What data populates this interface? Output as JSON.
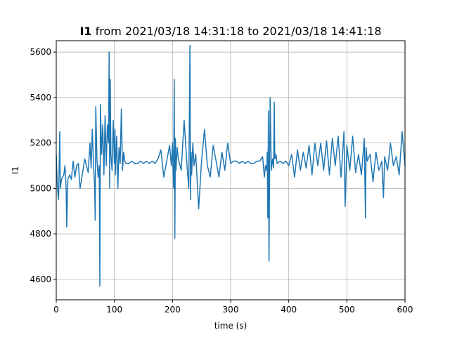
{
  "chart_data": {
    "type": "line",
    "title": {
      "bold": "I1",
      "rest": " from 2021/03/18 14:31:18 to 2021/03/18 14:41:18"
    },
    "xlabel": "time (s)",
    "ylabel": "I1",
    "xlim": [
      0,
      600
    ],
    "ylim": [
      4510,
      5650
    ],
    "xticks": [
      0,
      100,
      200,
      300,
      400,
      500,
      600
    ],
    "yticks": [
      4600,
      4800,
      5000,
      5200,
      5400,
      5600
    ],
    "grid": true,
    "series": [
      {
        "color": "#1f77b4",
        "x": [
          0,
          2,
          4,
          6,
          7,
          9,
          11,
          13,
          15,
          17,
          18,
          20,
          23,
          26,
          29,
          32,
          35,
          38,
          41,
          43,
          46,
          49,
          52,
          55,
          58,
          60,
          62,
          64,
          66,
          67,
          68,
          70,
          72,
          74,
          75,
          76,
          78,
          80,
          82,
          84,
          86,
          88,
          90,
          91,
          92,
          93,
          94,
          96,
          98,
          100,
          101,
          102,
          104,
          106,
          108,
          110,
          112,
          114,
          116,
          118,
          120,
          125,
          130,
          135,
          140,
          145,
          150,
          155,
          160,
          165,
          170,
          175,
          180,
          185,
          190,
          195,
          198,
          200,
          202,
          203,
          204,
          205,
          206,
          208,
          210,
          215,
          220,
          225,
          228,
          230,
          231,
          232,
          233,
          235,
          237,
          240,
          245,
          250,
          255,
          260,
          265,
          270,
          275,
          280,
          285,
          290,
          295,
          300,
          305,
          310,
          315,
          320,
          325,
          330,
          335,
          340,
          345,
          350,
          355,
          358,
          360,
          362,
          363,
          364,
          365,
          366,
          368,
          370,
          372,
          374,
          375,
          376,
          378,
          380,
          385,
          390,
          395,
          400,
          405,
          410,
          415,
          420,
          425,
          430,
          435,
          440,
          445,
          450,
          455,
          460,
          465,
          470,
          475,
          480,
          485,
          490,
          495,
          497,
          500,
          505,
          510,
          515,
          520,
          525,
          530,
          532,
          533,
          535,
          540,
          545,
          550,
          555,
          560,
          563,
          565,
          570,
          575,
          580,
          585,
          590,
          595,
          600
        ],
        "y": [
          5150,
          5000,
          4950,
          5250,
          5000,
          5040,
          5050,
          5060,
          5100,
          5000,
          4830,
          5040,
          5060,
          5040,
          5120,
          5050,
          5100,
          5110,
          5000,
          5030,
          5080,
          5130,
          5100,
          5070,
          5200,
          5090,
          5260,
          5110,
          5010,
          4860,
          5360,
          5130,
          5050,
          5100,
          4570,
          5370,
          5150,
          5280,
          5060,
          5320,
          5100,
          5280,
          5200,
          5600,
          5000,
          5480,
          5150,
          5080,
          5300,
          5110,
          5260,
          5060,
          5230,
          5000,
          5180,
          5110,
          5350,
          5080,
          5160,
          5120,
          5110,
          5110,
          5120,
          5110,
          5110,
          5120,
          5110,
          5120,
          5110,
          5120,
          5110,
          5130,
          5170,
          5050,
          5120,
          5190,
          5100,
          5200,
          5000,
          5480,
          4780,
          5220,
          5080,
          5180,
          5130,
          5080,
          5300,
          5100,
          5000,
          5630,
          4950,
          5160,
          5060,
          5200,
          5100,
          5150,
          4910,
          5120,
          5260,
          5100,
          5050,
          5190,
          5120,
          5050,
          5160,
          5080,
          5200,
          5110,
          5120,
          5120,
          5110,
          5120,
          5110,
          5120,
          5110,
          5110,
          5120,
          5120,
          5140,
          5050,
          5100,
          5080,
          5160,
          4870,
          5340,
          4680,
          5400,
          5080,
          5130,
          5090,
          5380,
          5130,
          5150,
          5110,
          5120,
          5110,
          5120,
          5100,
          5150,
          5050,
          5170,
          5080,
          5160,
          5090,
          5190,
          5060,
          5200,
          5100,
          5200,
          5080,
          5210,
          5060,
          5220,
          5100,
          5230,
          5050,
          5250,
          4920,
          5190,
          5080,
          5230,
          5070,
          5150,
          5060,
          5220,
          4870,
          5180,
          5120,
          5150,
          5030,
          5160,
          5080,
          5120,
          4960,
          5140,
          5080,
          5200,
          5100,
          5140,
          5060,
          5250,
          5100
        ]
      }
    ]
  }
}
